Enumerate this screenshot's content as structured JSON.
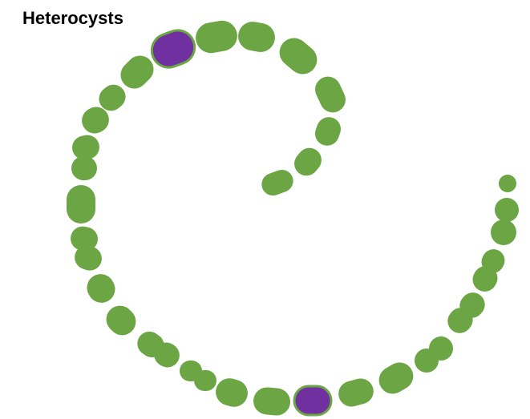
{
  "title": "Heterocysts"
}
